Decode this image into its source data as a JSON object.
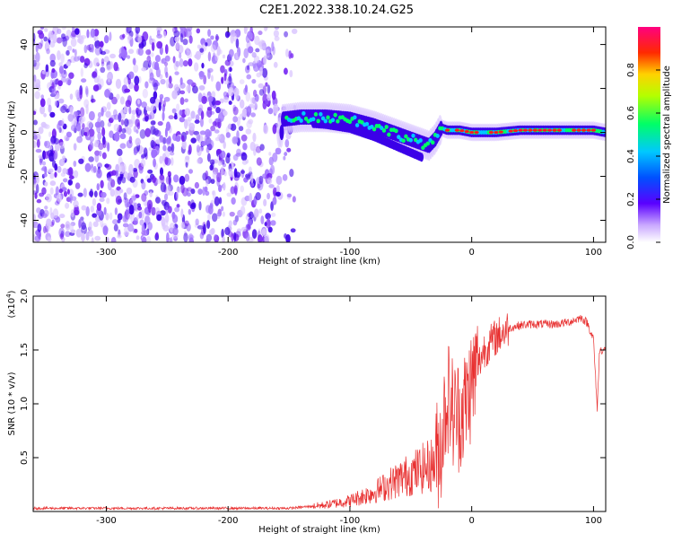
{
  "title": "C2E1.2022.338.10.24.G25",
  "chart_data": [
    {
      "type": "heatmap",
      "xlabel": "Height of straight line (km)",
      "ylabel": "Frequency (Hz)",
      "xlim": [
        -360,
        110
      ],
      "ylim": [
        -50,
        48
      ],
      "xticks": [
        -300,
        -200,
        -100,
        0,
        100
      ],
      "yticks": [
        -40,
        -20,
        0,
        20,
        40
      ],
      "colorbar": {
        "label": "Normalized spectral amplitude",
        "range": [
          0,
          1
        ],
        "ticks": [
          "0.0",
          "0.2",
          "0.4",
          "0.6",
          "0.8"
        ]
      },
      "colors": {
        "noise_low": "#d9c4ff",
        "noise_mid": "#a073ff",
        "noise_high": "#6f1cf2",
        "band_edge": "#3b00e8",
        "mid": "#00c8ff",
        "mid2": "#00ff66",
        "peak": "#ff1a1a"
      },
      "signal_track": {
        "x": [
          -155,
          -140,
          -120,
          -100,
          -80,
          -60,
          -45,
          -35,
          -30,
          -25,
          -20,
          -10,
          0,
          20,
          40,
          60,
          80,
          100,
          110
        ],
        "y": [
          6,
          7,
          7,
          6,
          3,
          -1,
          -4,
          -6,
          -3,
          2,
          1,
          1,
          0,
          0,
          1,
          1,
          1,
          1,
          0
        ]
      }
    },
    {
      "type": "line",
      "xlabel": "Height of straight line (km)",
      "ylabel": "SNR (10 * v/v)",
      "y_multiplier": "(x10",
      "y_multiplier_exp": "4",
      "y_multiplier_close": ")",
      "xlim": [
        -360,
        110
      ],
      "ylim": [
        0,
        2.0
      ],
      "xticks": [
        -300,
        -200,
        -100,
        0,
        100
      ],
      "yticks": [
        "0.5",
        "1.0",
        "1.5",
        "2.0"
      ],
      "line_color": "#e83030",
      "series": [
        {
          "x": [
            -360,
            -300,
            -250,
            -200,
            -150,
            -120,
            -100,
            -80,
            -60,
            -40,
            -30,
            -25,
            -20,
            -15,
            -10,
            -5,
            0,
            5,
            10,
            20,
            30,
            40,
            50,
            60,
            70,
            80,
            85,
            90,
            95,
            100,
            103,
            105,
            110
          ],
          "y": [
            0.03,
            0.03,
            0.03,
            0.03,
            0.03,
            0.06,
            0.1,
            0.18,
            0.3,
            0.4,
            0.45,
            0.65,
            1.1,
            0.9,
            0.9,
            1.0,
            1.2,
            1.35,
            1.5,
            1.62,
            1.7,
            1.73,
            1.74,
            1.74,
            1.74,
            1.76,
            1.78,
            1.8,
            1.75,
            1.6,
            0.95,
            1.5,
            1.5
          ]
        }
      ]
    }
  ]
}
